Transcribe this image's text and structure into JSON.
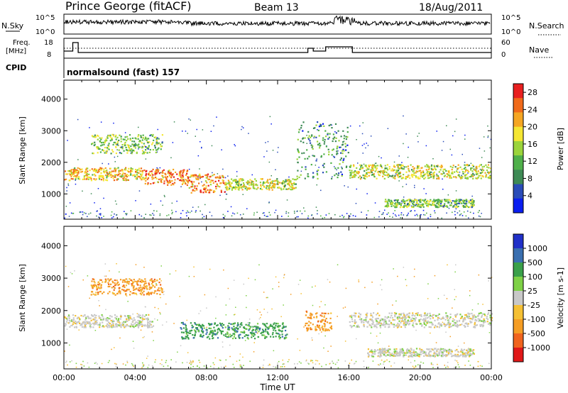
{
  "header": {
    "station": "Prince George (fitACF)",
    "beam": "Beam 13",
    "date": "18/Aug/2011"
  },
  "left_labels": {
    "nsky": "N.Sky",
    "nsky_top": "10^5",
    "nsky_bottom": "10^0",
    "freq_line1": "Freq.",
    "freq_line2": "[MHz]",
    "freq_top": "18",
    "freq_bottom": "8",
    "cpid": "CPID"
  },
  "right_labels": {
    "nsearch": "N.Search",
    "nsearch_top": "10^5",
    "nsearch_bottom": "10^0",
    "nave": "Nave",
    "nave_top": "60",
    "nave_bottom": "0"
  },
  "cpid_text": "normalsound (fast) 157",
  "colors": {
    "power_scale": [
      "#0a1ef0",
      "#2a4cb8",
      "#3e8a55",
      "#4fb04a",
      "#9bd43b",
      "#f5e633",
      "#f5a623",
      "#f06a1a",
      "#e81f1f"
    ],
    "velocity_scale": [
      "#e01818",
      "#f0641e",
      "#f59d24",
      "#f5c034",
      "#c8c8c8",
      "#7ed146",
      "#3aa04a",
      "#3a6fb0",
      "#2030c8"
    ]
  },
  "chart_data": [
    {
      "type": "heatmap",
      "name": "power",
      "xlabel": "",
      "ylabel": "Slant Range [km]",
      "x_ticks": [
        "00:00",
        "04:00",
        "08:00",
        "12:00",
        "16:00",
        "20:00",
        "00:00"
      ],
      "y_ticks": [
        "1000",
        "2000",
        "3000",
        "4000"
      ],
      "xlim": [
        0,
        24
      ],
      "ylim": [
        200,
        4600
      ],
      "colorbar": {
        "label": "Power [dB]",
        "ticks": [
          "4",
          "8",
          "12",
          "16",
          "20",
          "24",
          "28"
        ],
        "range": [
          0,
          30
        ]
      },
      "features": [
        {
          "x": [
            0,
            4.5
          ],
          "y": [
            1450,
            1850
          ],
          "level": 24
        },
        {
          "x": [
            4.5,
            7.0
          ],
          "y": [
            1300,
            1800
          ],
          "level": 26
        },
        {
          "x": [
            7.0,
            9.0
          ],
          "y": [
            1050,
            1650
          ],
          "level": 27
        },
        {
          "x": [
            9.0,
            13.0
          ],
          "y": [
            1150,
            1500
          ],
          "level": 20
        },
        {
          "x": [
            13.0,
            16.0
          ],
          "y": [
            1500,
            3300
          ],
          "level": 10
        },
        {
          "x": [
            16.0,
            24.0
          ],
          "y": [
            1500,
            1950
          ],
          "level": 18
        },
        {
          "x": [
            1.5,
            5.5
          ],
          "y": [
            2300,
            2900
          ],
          "level": 16
        },
        {
          "x": [
            18.0,
            23.0
          ],
          "y": [
            600,
            850
          ],
          "level": 14
        }
      ]
    },
    {
      "type": "heatmap",
      "name": "velocity",
      "xlabel": "Time UT",
      "ylabel": "Slant Range [km]",
      "x_ticks": [
        "00:00",
        "04:00",
        "08:00",
        "12:00",
        "16:00",
        "20:00",
        "00:00"
      ],
      "y_ticks": [
        "1000",
        "2000",
        "3000",
        "4000"
      ],
      "xlim": [
        0,
        24
      ],
      "ylim": [
        200,
        4600
      ],
      "colorbar": {
        "label": "Velocity [m s-1]",
        "ticks": [
          "1000",
          "500",
          "100",
          "25",
          "-25",
          "-100",
          "-500",
          "-1000"
        ]
      },
      "features": [
        {
          "x": [
            0,
            5.0
          ],
          "y": [
            1500,
            1900
          ],
          "level": 0
        },
        {
          "x": [
            6.5,
            12.5
          ],
          "y": [
            1150,
            1650
          ],
          "level": 100
        },
        {
          "x": [
            1.5,
            5.5
          ],
          "y": [
            2500,
            3000
          ],
          "level": -100
        },
        {
          "x": [
            13.5,
            15.0
          ],
          "y": [
            1400,
            2000
          ],
          "level": -300
        },
        {
          "x": [
            16.0,
            24.0
          ],
          "y": [
            1500,
            1950
          ],
          "level": 0
        },
        {
          "x": [
            17.0,
            23.0
          ],
          "y": [
            600,
            850
          ],
          "level": 0
        }
      ]
    }
  ],
  "freq_series": {
    "x": [
      0,
      0.5,
      0.5,
      0.8,
      0.8,
      13.7,
      13.7,
      14.0,
      14.0,
      14.7,
      14.7,
      16.2,
      16.2,
      24
    ],
    "y": [
      12,
      12,
      18,
      18,
      11,
      11,
      14,
      14,
      12,
      12,
      15,
      15,
      11,
      11
    ]
  }
}
